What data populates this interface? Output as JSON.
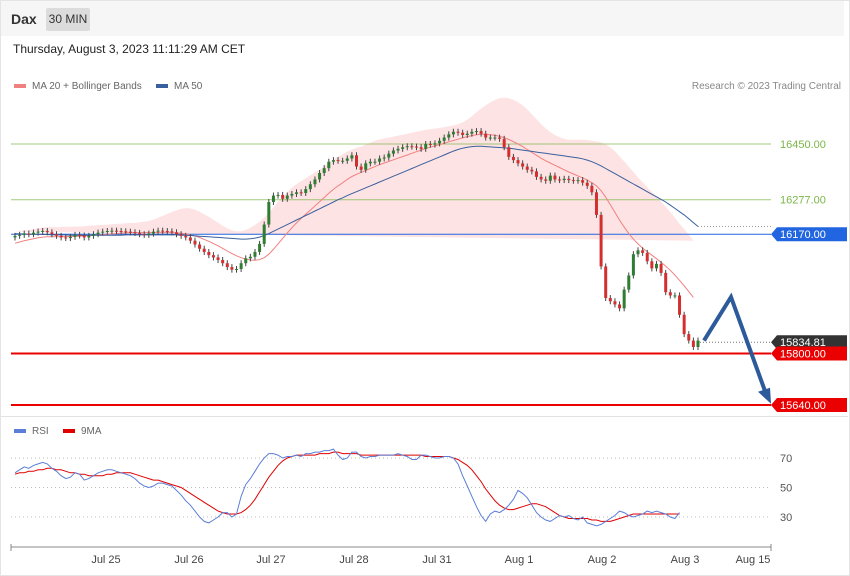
{
  "header": {
    "symbol": "Dax",
    "timeframe": "30 MIN"
  },
  "datetime": "Thursday, August 3, 2023 11:11:29 AM CET",
  "legend": [
    {
      "label": "MA 20 + Bollinger Bands",
      "color": "#f08080"
    },
    {
      "label": "MA 50",
      "color": "#3a5f9e"
    }
  ],
  "copyright": "Research © 2023 Trading Central",
  "rsi_legend": [
    {
      "label": "RSI",
      "color": "#5b7fd6"
    },
    {
      "label": "9MA",
      "color": "#e00000"
    }
  ],
  "chart_data": [
    {
      "type": "candlestick",
      "x_tick_labels": [
        "Jul 25",
        "Jul 26",
        "Jul 27",
        "Jul 28",
        "Jul 31",
        "Aug 1",
        "Aug 2",
        "Aug 3",
        "Aug 15"
      ],
      "price_levels": [
        {
          "value": 16450,
          "label": "16450.00",
          "kind": "resistance",
          "color": "#7ab648"
        },
        {
          "value": 16277,
          "label": "16277.00",
          "kind": "resistance",
          "color": "#7ab648"
        },
        {
          "value": 16170,
          "label": "16170.00",
          "kind": "pivot",
          "color": "#2166e0"
        },
        {
          "value": 15834.81,
          "label": "15834.81",
          "kind": "last",
          "color": "#333333"
        },
        {
          "value": 15800,
          "label": "15800.00",
          "kind": "support",
          "color": "#ea0000"
        },
        {
          "value": 15640,
          "label": "15640.00",
          "kind": "support",
          "color": "#ea0000"
        }
      ],
      "close": [
        16165,
        16168,
        16172,
        16170,
        16175,
        16178,
        16180,
        16176,
        16170,
        16165,
        16160,
        16158,
        16162,
        16168,
        16166,
        16160,
        16165,
        16170,
        16175,
        16178,
        16180,
        16181,
        16180,
        16179,
        16178,
        16176,
        16174,
        16170,
        16168,
        16172,
        16178,
        16181,
        16180,
        16179,
        16176,
        16170,
        16165,
        16160,
        16150,
        16138,
        16125,
        16115,
        16105,
        16098,
        16090,
        16080,
        16068,
        16060,
        16062,
        16080,
        16095,
        16100,
        16115,
        16140,
        16200,
        16270,
        16290,
        16292,
        16280,
        16290,
        16295,
        16300,
        16298,
        16310,
        16325,
        16340,
        16360,
        16375,
        16395,
        16400,
        16398,
        16398,
        16405,
        16415,
        16380,
        16370,
        16390,
        16395,
        16395,
        16405,
        16408,
        16420,
        16430,
        16435,
        16440,
        16443,
        16442,
        16440,
        16435,
        16450,
        16448,
        16452,
        16460,
        16470,
        16480,
        16488,
        16485,
        16478,
        16482,
        16488,
        16490,
        16482,
        16470,
        16470,
        16470,
        16466,
        16440,
        16410,
        16400,
        16390,
        16380,
        16370,
        16365,
        16348,
        16340,
        16336,
        16352,
        16340,
        16338,
        16342,
        16338,
        16336,
        16338,
        16330,
        16320,
        16300,
        16230,
        16070,
        15972,
        15962,
        15952,
        15940,
        15998,
        16042,
        16108,
        16120,
        16112,
        16086,
        16064,
        16078,
        16050,
        15990,
        15980,
        15980,
        15920,
        15860,
        15840,
        15820,
        15840
      ],
      "open": [
        16160,
        16165,
        16168,
        16172,
        16170,
        16175,
        16178,
        16180,
        16176,
        16170,
        16165,
        16160,
        16158,
        16162,
        16168,
        16166,
        16160,
        16165,
        16170,
        16175,
        16178,
        16180,
        16181,
        16180,
        16179,
        16178,
        16176,
        16174,
        16170,
        16168,
        16172,
        16178,
        16181,
        16180,
        16179,
        16176,
        16170,
        16165,
        16160,
        16150,
        16138,
        16125,
        16115,
        16105,
        16098,
        16090,
        16080,
        16068,
        16060,
        16062,
        16080,
        16095,
        16100,
        16115,
        16140,
        16200,
        16270,
        16290,
        16292,
        16280,
        16290,
        16295,
        16300,
        16298,
        16310,
        16325,
        16340,
        16360,
        16375,
        16395,
        16400,
        16398,
        16398,
        16405,
        16415,
        16380,
        16370,
        16390,
        16395,
        16395,
        16405,
        16408,
        16420,
        16430,
        16435,
        16440,
        16443,
        16442,
        16440,
        16435,
        16450,
        16448,
        16452,
        16460,
        16470,
        16480,
        16488,
        16485,
        16478,
        16482,
        16488,
        16490,
        16482,
        16470,
        16470,
        16470,
        16466,
        16440,
        16410,
        16400,
        16390,
        16380,
        16370,
        16365,
        16348,
        16340,
        16336,
        16352,
        16340,
        16338,
        16342,
        16338,
        16336,
        16338,
        16330,
        16320,
        16300,
        16230,
        16070,
        15972,
        15962,
        15952,
        15940,
        15998,
        16042,
        16108,
        16120,
        16112,
        16086,
        16064,
        16078,
        16050,
        15990,
        15980,
        15980,
        15920,
        15860,
        15840,
        15820
      ],
      "ma20": [
        16142,
        16146,
        16150,
        16153,
        16156,
        16159,
        16161,
        16162,
        16162,
        16162,
        16162,
        16163,
        16163,
        16164,
        16164,
        16165,
        16166,
        16167,
        16168,
        16169,
        16170,
        16171,
        16172,
        16173,
        16174,
        16175,
        16175,
        16175,
        16175,
        16175,
        16175,
        16175,
        16175,
        16175,
        16175,
        16174,
        16173,
        16171,
        16168,
        16164,
        16160,
        16154,
        16148,
        16141,
        16134,
        16126,
        16118,
        16110,
        16103,
        16097,
        16093,
        16090,
        16089,
        16091,
        16097,
        16108,
        16123,
        16140,
        16157,
        16174,
        16190,
        16205,
        16219,
        16232,
        16245,
        16258,
        16271,
        16284,
        16297,
        16309,
        16320,
        16330,
        16340,
        16349,
        16356,
        16362,
        16368,
        16374,
        16380,
        16386,
        16391,
        16396,
        16401,
        16406,
        16411,
        16416,
        16421,
        16426,
        16431,
        16436,
        16440,
        16444,
        16448,
        16452,
        16457,
        16461,
        16465,
        16469,
        16473,
        16476,
        16479,
        16480,
        16480,
        16479,
        16477,
        16474,
        16470,
        16464,
        16457,
        16450,
        16442,
        16433,
        16424,
        16415,
        16406,
        16398,
        16391,
        16384,
        16377,
        16370,
        16363,
        16357,
        16351,
        16345,
        16338,
        16330,
        16320,
        16305,
        16285,
        16262,
        16238,
        16214,
        16192,
        16172,
        16155,
        16140,
        16127,
        16116,
        16105,
        16094,
        16083,
        16071,
        16058,
        16043,
        16027,
        16010,
        15992,
        15974
      ],
      "ma50": [
        16172,
        16171,
        16171,
        16170,
        16170,
        16170,
        16169,
        16169,
        16168,
        16168,
        16168,
        16168,
        16167,
        16167,
        16167,
        16167,
        16167,
        16167,
        16167,
        16167,
        16167,
        16167,
        16167,
        16167,
        16168,
        16168,
        16168,
        16168,
        16168,
        16168,
        16168,
        16168,
        16168,
        16168,
        16168,
        16168,
        16167,
        16167,
        16166,
        16165,
        16164,
        16163,
        16162,
        16161,
        16160,
        16159,
        16158,
        16157,
        16156,
        16155,
        16155,
        16156,
        16158,
        16161,
        16166,
        16172,
        16179,
        16186,
        16193,
        16200,
        16207,
        16214,
        16221,
        16228,
        16235,
        16242,
        16249,
        16256,
        16263,
        16270,
        16277,
        16283,
        16290,
        16296,
        16302,
        16308,
        16314,
        16320,
        16326,
        16332,
        16338,
        16344,
        16350,
        16356,
        16362,
        16368,
        16374,
        16380,
        16386,
        16392,
        16398,
        16404,
        16410,
        16416,
        16422,
        16428,
        16433,
        16437,
        16440,
        16442,
        16443,
        16443,
        16442,
        16441,
        16440,
        16439,
        16438,
        16437,
        16435,
        16433,
        16431,
        16429,
        16427,
        16425,
        16423,
        16421,
        16419,
        16417,
        16415,
        16413,
        16411,
        16409,
        16407,
        16404,
        16400,
        16395,
        16389,
        16382,
        16374,
        16366,
        16358,
        16350,
        16342,
        16334,
        16326,
        16318,
        16310,
        16302,
        16294,
        16286,
        16278,
        16270,
        16260,
        16250,
        16240,
        16230,
        16218,
        16206,
        16194
      ],
      "bb_width": [
        36,
        34,
        32,
        30,
        30,
        30,
        30,
        30,
        30,
        30,
        30,
        30,
        30,
        30,
        30,
        30,
        30,
        30,
        30,
        30,
        30,
        30,
        30,
        30,
        30,
        30,
        30,
        32,
        34,
        36,
        40,
        46,
        52,
        58,
        64,
        70,
        76,
        80,
        82,
        82,
        80,
        78,
        76,
        74,
        72,
        70,
        70,
        72,
        76,
        82,
        90,
        100,
        110,
        118,
        124,
        128,
        130,
        130,
        128,
        126,
        124,
        120,
        116,
        112,
        108,
        104,
        100,
        96,
        94,
        92,
        90,
        88,
        86,
        84,
        82,
        80,
        80,
        80,
        80,
        78,
        76,
        74,
        72,
        70,
        68,
        66,
        64,
        62,
        60,
        58,
        56,
        54,
        52,
        50,
        48,
        46,
        46,
        48,
        52,
        60,
        70,
        80,
        90,
        100,
        110,
        118,
        124,
        128,
        130,
        130,
        128,
        124,
        118,
        112,
        106,
        100,
        96,
        94,
        94,
        96,
        100,
        106,
        112,
        118,
        124,
        130,
        138,
        150,
        164,
        178,
        190,
        198,
        204,
        208,
        208,
        206,
        204,
        200,
        196,
        192,
        188,
        184,
        180,
        178,
        176,
        176,
        176,
        176,
        176
      ],
      "rsi": [
        60,
        62,
        64,
        63,
        65,
        66,
        67,
        66,
        63,
        61,
        58,
        56,
        57,
        60,
        59,
        55,
        56,
        58,
        60,
        61,
        62,
        62,
        61,
        60,
        59,
        58,
        56,
        53,
        51,
        50,
        51,
        53,
        53,
        52,
        51,
        48,
        45,
        41,
        38,
        34,
        30,
        27,
        26,
        28,
        30,
        33,
        33,
        30,
        32,
        44,
        52,
        56,
        61,
        66,
        70,
        73,
        73,
        72,
        70,
        71,
        71,
        72,
        71,
        73,
        73,
        74,
        74,
        75,
        75,
        76,
        72,
        69,
        70,
        74,
        74,
        71,
        70,
        71,
        71,
        72,
        72,
        72,
        72,
        73,
        72,
        71,
        69,
        69,
        72,
        72,
        71,
        70,
        70,
        71,
        71,
        70,
        66,
        58,
        51,
        44,
        37,
        31,
        27,
        32,
        34,
        33,
        35,
        38,
        42,
        48,
        46,
        43,
        38,
        33,
        30,
        28,
        27,
        29,
        31,
        30,
        31,
        29,
        28,
        30,
        26,
        25,
        24,
        25,
        27,
        29,
        31,
        34,
        33,
        31,
        30,
        31,
        32,
        34,
        33,
        34,
        33,
        32,
        30,
        29,
        33
      ],
      "rsi_ma": [
        59,
        60,
        60,
        61,
        61,
        62,
        62,
        63,
        63,
        62,
        62,
        61,
        60,
        60,
        59,
        59,
        58,
        58,
        58,
        58,
        59,
        59,
        60,
        60,
        60,
        60,
        59,
        58,
        57,
        56,
        55,
        55,
        54,
        53,
        52,
        51,
        50,
        48,
        46,
        44,
        42,
        40,
        38,
        36,
        34,
        33,
        32,
        32,
        32,
        33,
        35,
        38,
        42,
        47,
        52,
        57,
        61,
        65,
        68,
        70,
        71,
        72,
        72,
        72,
        72,
        72,
        73,
        73,
        73,
        74,
        74,
        73,
        73,
        73,
        73,
        72,
        72,
        72,
        72,
        72,
        72,
        72,
        72,
        72,
        72,
        72,
        72,
        72,
        72,
        71,
        71,
        71,
        71,
        71,
        71,
        70,
        69,
        67,
        65,
        62,
        58,
        54,
        49,
        45,
        41,
        38,
        36,
        35,
        35,
        36,
        37,
        38,
        39,
        39,
        38,
        37,
        35,
        33,
        31,
        30,
        29,
        29,
        29,
        29,
        29,
        28,
        28,
        27,
        27,
        27,
        28,
        29,
        30,
        31,
        32,
        32,
        32,
        32,
        32,
        32,
        32,
        32,
        32,
        32,
        32
      ],
      "rsi_ticks": [
        70,
        50,
        30
      ]
    }
  ]
}
